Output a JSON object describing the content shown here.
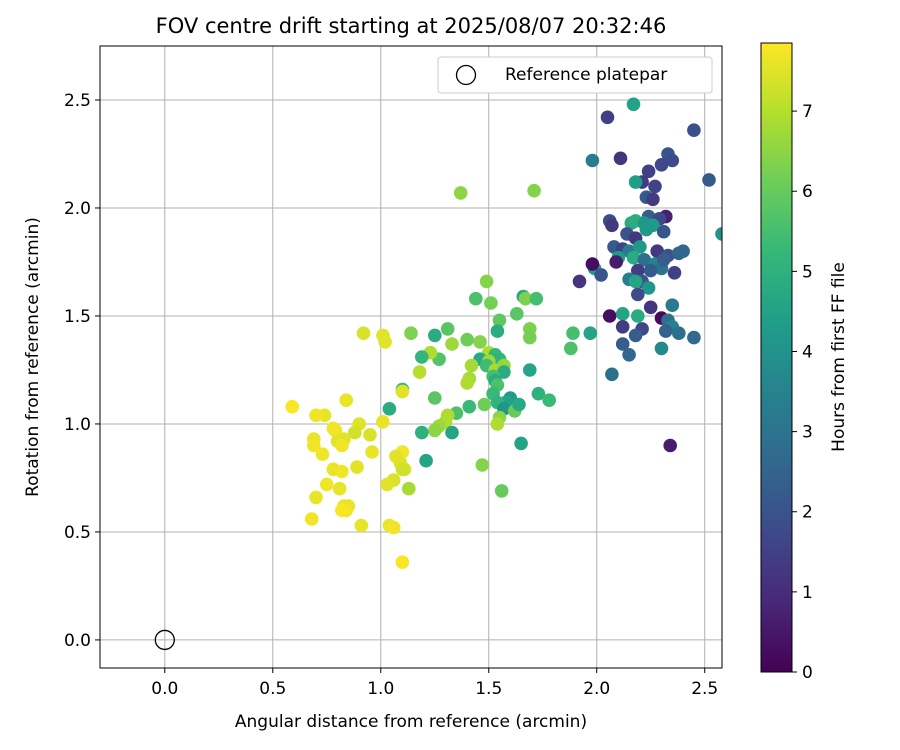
{
  "chart_data": {
    "type": "scatter",
    "title": "FOV centre drift starting at 2025/08/07 20:32:46",
    "xlabel": "Angular distance from reference (arcmin)",
    "ylabel": "Rotation from reference (arcmin)",
    "xlim": [
      -0.3,
      2.58
    ],
    "ylim": [
      -0.13,
      2.75
    ],
    "xticks": [
      "0.0",
      "0.5",
      "1.0",
      "1.5",
      "2.0",
      "2.5"
    ],
    "yticks": [
      "0.0",
      "0.5",
      "1.0",
      "1.5",
      "2.0",
      "2.5"
    ],
    "grid": true,
    "legend": {
      "position": "top-right",
      "entries": [
        {
          "label": "Reference platepar",
          "marker": "open-circle"
        }
      ]
    },
    "reference_point": {
      "x": 0.0,
      "y": 0.0
    },
    "colorbar": {
      "label": "Hours from first FF file",
      "colormap": "viridis",
      "range": [
        0,
        7.85
      ],
      "ticks": [
        "0",
        "1",
        "2",
        "3",
        "4",
        "5",
        "6",
        "7"
      ]
    },
    "points": [
      [
        2.17,
        2.48,
        4.5
      ],
      [
        2.05,
        2.42,
        1.5
      ],
      [
        2.45,
        2.36,
        1.9
      ],
      [
        2.33,
        2.25,
        2.0
      ],
      [
        2.35,
        2.22,
        1.8
      ],
      [
        2.3,
        2.2,
        1.7
      ],
      [
        1.98,
        2.22,
        3.3
      ],
      [
        2.11,
        2.23,
        1.2
      ],
      [
        2.24,
        2.17,
        1.5
      ],
      [
        2.21,
        2.12,
        1.4
      ],
      [
        2.27,
        2.1,
        1.6
      ],
      [
        2.52,
        2.13,
        2.2
      ],
      [
        2.18,
        2.12,
        4.4
      ],
      [
        2.23,
        2.05,
        2.2
      ],
      [
        2.26,
        2.04,
        1.4
      ],
      [
        2.24,
        1.96,
        2.3
      ],
      [
        2.32,
        1.96,
        0.7
      ],
      [
        2.29,
        1.95,
        1.7
      ],
      [
        2.06,
        1.94,
        1.8
      ],
      [
        2.07,
        1.92,
        1.3
      ],
      [
        2.16,
        1.93,
        4.7
      ],
      [
        2.18,
        1.94,
        4.9
      ],
      [
        2.22,
        1.93,
        4.1
      ],
      [
        2.26,
        1.92,
        4.3
      ],
      [
        2.14,
        1.88,
        2.0
      ],
      [
        2.31,
        1.89,
        2.1
      ],
      [
        2.23,
        1.9,
        4.2
      ],
      [
        2.18,
        1.86,
        1.3
      ],
      [
        2.08,
        1.82,
        2.2
      ],
      [
        2.12,
        1.81,
        1.6
      ],
      [
        2.15,
        1.8,
        3.3
      ],
      [
        2.2,
        1.82,
        4.2
      ],
      [
        2.28,
        1.8,
        1.3
      ],
      [
        2.33,
        1.78,
        2.0
      ],
      [
        2.38,
        1.79,
        2.5
      ],
      [
        2.4,
        1.8,
        2.6
      ],
      [
        2.1,
        1.77,
        4.3
      ],
      [
        2.17,
        1.77,
        4.8
      ],
      [
        2.22,
        1.76,
        2.9
      ],
      [
        2.27,
        1.74,
        3.5
      ],
      [
        2.3,
        1.72,
        3.0
      ],
      [
        1.99,
        1.72,
        4.4
      ],
      [
        2.02,
        1.69,
        2.0
      ],
      [
        2.09,
        1.75,
        0.6
      ],
      [
        1.98,
        1.74,
        0.3
      ],
      [
        2.19,
        1.71,
        1.4
      ],
      [
        2.21,
        1.66,
        2.0
      ],
      [
        2.25,
        1.71,
        2.2
      ],
      [
        2.31,
        1.76,
        2.3
      ],
      [
        2.36,
        1.7,
        1.5
      ],
      [
        2.15,
        1.67,
        3.3
      ],
      [
        2.18,
        1.66,
        4.6
      ],
      [
        2.24,
        1.63,
        4.1
      ],
      [
        2.19,
        1.6,
        1.8
      ],
      [
        2.06,
        1.5,
        0.3
      ],
      [
        2.12,
        1.51,
        4.6
      ],
      [
        2.19,
        1.5,
        4.8
      ],
      [
        2.3,
        1.49,
        0.2
      ],
      [
        2.25,
        1.54,
        1.2
      ],
      [
        2.35,
        1.55,
        3.2
      ],
      [
        2.21,
        1.44,
        1.7
      ],
      [
        2.33,
        1.48,
        2.9
      ],
      [
        2.35,
        1.45,
        3.5
      ],
      [
        2.32,
        1.43,
        2.4
      ],
      [
        2.38,
        1.42,
        2.9
      ],
      [
        2.45,
        1.4,
        2.7
      ],
      [
        1.92,
        1.66,
        1.2
      ],
      [
        2.12,
        1.45,
        1.4
      ],
      [
        2.18,
        1.41,
        2.3
      ],
      [
        2.15,
        1.32,
        2.6
      ],
      [
        2.12,
        1.37,
        2.3
      ],
      [
        2.3,
        1.35,
        3.7
      ],
      [
        1.88,
        1.35,
        5.6
      ],
      [
        1.89,
        1.42,
        5.5
      ],
      [
        1.97,
        1.42,
        4.6
      ],
      [
        2.07,
        1.23,
        2.9
      ],
      [
        2.34,
        0.9,
        0.6
      ],
      [
        1.66,
        1.59,
        4.7
      ],
      [
        1.67,
        1.58,
        6.3
      ],
      [
        1.72,
        1.58,
        5.5
      ],
      [
        1.63,
        1.51,
        5.8
      ],
      [
        1.55,
        1.48,
        5.9
      ],
      [
        1.54,
        1.43,
        4.9
      ],
      [
        1.49,
        1.66,
        6.4
      ],
      [
        1.51,
        1.56,
        6.2
      ],
      [
        1.69,
        1.44,
        6.3
      ],
      [
        1.69,
        1.4,
        6.2
      ],
      [
        1.4,
        1.39,
        6.1
      ],
      [
        1.46,
        1.38,
        6.4
      ],
      [
        1.5,
        1.33,
        6.9
      ],
      [
        1.44,
        1.58,
        5.6
      ],
      [
        1.37,
        2.07,
        6.5
      ],
      [
        1.71,
        2.08,
        6.4
      ],
      [
        1.53,
        1.32,
        5.2
      ],
      [
        1.55,
        1.3,
        5.1
      ],
      [
        1.46,
        1.3,
        4.7
      ],
      [
        1.5,
        1.29,
        6.7
      ],
      [
        1.49,
        1.27,
        5.4
      ],
      [
        1.53,
        1.25,
        6.8
      ],
      [
        1.57,
        1.27,
        6.6
      ],
      [
        1.57,
        1.24,
        4.9
      ],
      [
        1.52,
        1.22,
        5.5
      ],
      [
        1.53,
        1.2,
        4.8
      ],
      [
        1.54,
        1.18,
        5.6
      ],
      [
        1.52,
        1.14,
        5.3
      ],
      [
        1.6,
        1.12,
        4.3
      ],
      [
        1.58,
        1.1,
        4.5
      ],
      [
        1.54,
        1.1,
        5.1
      ],
      [
        1.57,
        1.07,
        4.1
      ],
      [
        1.62,
        1.06,
        6.0
      ],
      [
        1.64,
        1.09,
        4.7
      ],
      [
        1.69,
        1.25,
        4.6
      ],
      [
        1.73,
        1.14,
        5.0
      ],
      [
        1.78,
        1.11,
        5.3
      ],
      [
        1.65,
        0.91,
        4.5
      ],
      [
        1.41,
        1.21,
        6.8
      ],
      [
        1.42,
        1.27,
        6.8
      ],
      [
        1.4,
        1.19,
        6.9
      ],
      [
        1.41,
        1.08,
        5.3
      ],
      [
        1.48,
        1.09,
        6.1
      ],
      [
        1.55,
        1.03,
        6.5
      ],
      [
        1.54,
        1.0,
        6.9
      ],
      [
        1.56,
        0.69,
        6.0
      ],
      [
        1.47,
        0.81,
        6.4
      ],
      [
        1.25,
        1.41,
        4.8
      ],
      [
        1.31,
        1.44,
        5.8
      ],
      [
        1.33,
        1.37,
        6.7
      ],
      [
        1.27,
        1.3,
        5.7
      ],
      [
        1.23,
        1.33,
        6.9
      ],
      [
        1.19,
        1.31,
        5.2
      ],
      [
        1.18,
        1.24,
        7.0
      ],
      [
        1.25,
        1.12,
        5.8
      ],
      [
        1.14,
        1.42,
        6.3
      ],
      [
        1.1,
        1.16,
        5.4
      ],
      [
        1.1,
        1.15,
        7.5
      ],
      [
        1.35,
        1.05,
        5.6
      ],
      [
        1.31,
        1.04,
        6.9
      ],
      [
        1.3,
        1.01,
        6.9
      ],
      [
        1.27,
        0.99,
        6.7
      ],
      [
        1.25,
        0.97,
        6.5
      ],
      [
        1.33,
        0.96,
        4.6
      ],
      [
        1.19,
        0.96,
        5.0
      ],
      [
        1.04,
        1.07,
        4.8
      ],
      [
        1.21,
        0.83,
        4.6
      ],
      [
        1.13,
        0.7,
        6.8
      ],
      [
        1.11,
        0.79,
        7.4
      ],
      [
        1.1,
        0.87,
        7.7
      ],
      [
        1.07,
        0.85,
        7.5
      ],
      [
        1.09,
        0.82,
        7.5
      ],
      [
        1.1,
        0.79,
        7.3
      ],
      [
        1.06,
        0.74,
        7.4
      ],
      [
        1.03,
        0.72,
        7.5
      ],
      [
        1.04,
        0.53,
        7.6
      ],
      [
        1.06,
        0.52,
        7.7
      ],
      [
        1.1,
        0.36,
        7.8
      ],
      [
        1.01,
        1.41,
        7.5
      ],
      [
        1.02,
        1.38,
        7.5
      ],
      [
        0.92,
        1.42,
        7.4
      ],
      [
        0.84,
        1.11,
        7.6
      ],
      [
        1.01,
        1.01,
        7.6
      ],
      [
        0.95,
        0.95,
        7.4
      ],
      [
        0.9,
        1.0,
        7.5
      ],
      [
        0.88,
        0.96,
        7.3
      ],
      [
        0.96,
        0.87,
        7.6
      ],
      [
        0.89,
        0.8,
        7.5
      ],
      [
        0.83,
        0.93,
        7.5
      ],
      [
        0.79,
        0.97,
        7.6
      ],
      [
        0.74,
        1.04,
        7.6
      ],
      [
        0.78,
        0.98,
        7.7
      ],
      [
        0.7,
        1.04,
        7.7
      ],
      [
        0.59,
        1.08,
        7.8
      ],
      [
        0.8,
        0.92,
        7.5
      ],
      [
        0.82,
        0.9,
        7.7
      ],
      [
        0.69,
        0.93,
        7.6
      ],
      [
        0.69,
        0.9,
        7.7
      ],
      [
        0.73,
        0.86,
        7.7
      ],
      [
        0.78,
        0.79,
        7.6
      ],
      [
        0.82,
        0.78,
        7.7
      ],
      [
        0.75,
        0.72,
        7.7
      ],
      [
        0.81,
        0.7,
        7.6
      ],
      [
        0.7,
        0.66,
        7.6
      ],
      [
        0.85,
        0.62,
        7.6
      ],
      [
        0.83,
        0.62,
        7.6
      ],
      [
        0.84,
        0.6,
        7.7
      ],
      [
        0.82,
        0.6,
        7.8
      ],
      [
        0.68,
        0.56,
        7.7
      ],
      [
        0.91,
        0.53,
        7.6
      ],
      [
        2.58,
        1.88,
        4.0
      ]
    ]
  }
}
